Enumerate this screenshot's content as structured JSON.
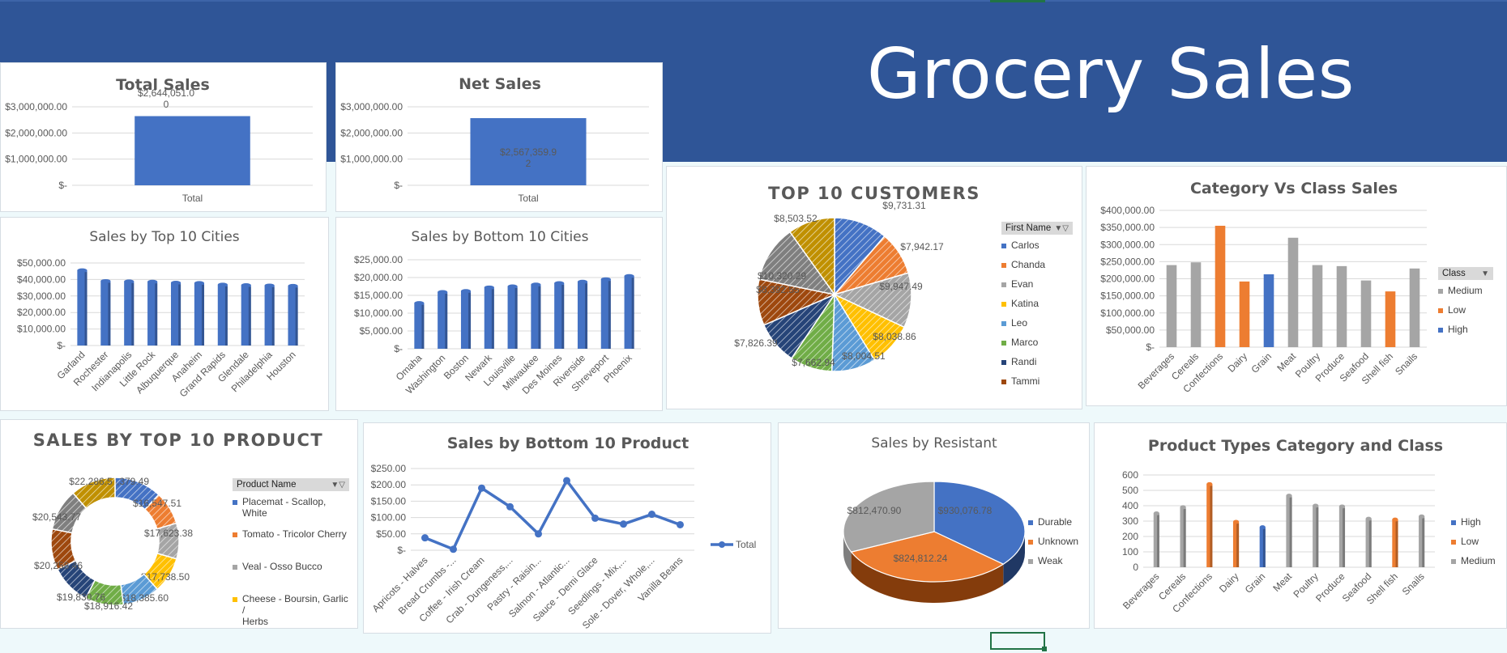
{
  "page": {
    "title": "Grocery Sales"
  },
  "colors": {
    "banner": "#2f5597",
    "bar": "#4472c4",
    "orange": "#ed7d31",
    "gray": "#a5a5a5",
    "yellow": "#ffc000",
    "lightblue": "#5b9bd5",
    "green": "#70ad47",
    "navy": "#264478",
    "brown": "#9e480e"
  },
  "chart_data": [
    {
      "id": "total_sales",
      "type": "bar",
      "title": "Total Sales",
      "categories": [
        "Total"
      ],
      "values": [
        2644051.0
      ],
      "data_labels": [
        "$2,644,051.0",
        "0"
      ],
      "ylim": [
        0,
        3000000
      ],
      "yticks": [
        "$-",
        "$1,000,000.00",
        "$2,000,000.00",
        "$3,000,000.00"
      ]
    },
    {
      "id": "net_sales",
      "type": "bar",
      "title": "Net Sales",
      "categories": [
        "Total"
      ],
      "values": [
        2567359.92
      ],
      "data_labels": [
        "$2,567,359.9",
        "2"
      ],
      "ylim": [
        0,
        3000000
      ],
      "yticks": [
        "$-",
        "$1,000,000.00",
        "$2,000,000.00",
        "$3,000,000.00"
      ]
    },
    {
      "id": "top_cities",
      "type": "bar",
      "title": "Sales by Top 10 Cities",
      "categories": [
        "Garland",
        "Rochester",
        "Indianapolis",
        "Little Rock",
        "Albuquerque",
        "Anaheim",
        "Grand Rapids",
        "Glendale",
        "Philadelphia",
        "Houston"
      ],
      "values": [
        45500,
        39000,
        38800,
        38600,
        38000,
        37800,
        36800,
        36500,
        36300,
        36100
      ],
      "ylim": [
        0,
        50000
      ],
      "yticks": [
        "$-",
        "$10,000.00",
        "$20,000.00",
        "$30,000.00",
        "$40,000.00",
        "$50,000.00"
      ]
    },
    {
      "id": "bottom_cities",
      "type": "bar",
      "title": "Sales by Bottom 10 Cities",
      "categories": [
        "Omaha",
        "Washington",
        "Boston",
        "Newark",
        "Louisville",
        "Milwaukee",
        "Des Moines",
        "Riverside",
        "Shreveport",
        "Phoenix"
      ],
      "values": [
        12800,
        15900,
        16200,
        17200,
        17500,
        18000,
        18400,
        18800,
        19500,
        20400
      ],
      "ylim": [
        0,
        25000
      ],
      "yticks": [
        "$-",
        "$5,000.00",
        "$10,000.00",
        "$15,000.00",
        "$20,000.00",
        "$25,000.00"
      ]
    },
    {
      "id": "top_customers",
      "type": "pie",
      "title": "TOP 10 CUSTOMERS",
      "legend_title": "First Name",
      "legend": [
        "Carlos",
        "Chanda",
        "Evan",
        "Katina",
        "Leo",
        "Marco",
        "Randi",
        "Tammi"
      ],
      "labels": [
        "$9,731.31",
        "$7,942.17",
        "$9,947.49",
        "$8,038.86",
        "$8,004.51",
        "$7,662.94",
        "$7,826.39",
        "$8,392.55",
        "$10,320.29",
        "$8,503.52"
      ],
      "values": [
        9731.31,
        7942.17,
        9947.49,
        8038.86,
        8004.51,
        7662.94,
        7826.39,
        8392.55,
        10320.29,
        8503.52
      ]
    },
    {
      "id": "category_class",
      "type": "bar",
      "title": "Category Vs Class Sales",
      "categories": [
        "Beverages",
        "Cereals",
        "Confections",
        "Dairy",
        "Grain",
        "Meat",
        "Poultry",
        "Produce",
        "Seafood",
        "Shell fish",
        "Snails"
      ],
      "values": [
        240000,
        248000,
        355000,
        192000,
        213000,
        320000,
        240000,
        237000,
        195000,
        163000,
        230000
      ],
      "classes": [
        "Medium",
        "Medium",
        "Low",
        "Low",
        "High",
        "Medium",
        "Medium",
        "Medium",
        "Medium",
        "Low",
        "Medium"
      ],
      "legend_title": "Class",
      "legend": [
        "Medium",
        "Low",
        "High"
      ],
      "ylim": [
        0,
        400000
      ],
      "yticks": [
        "$-",
        "$50,000.00",
        "$100,000.00",
        "$150,000.00",
        "$200,000.00",
        "$250,000.00",
        "$300,000.00",
        "$350,000.00",
        "$400,000.00"
      ]
    },
    {
      "id": "top_products",
      "type": "pie",
      "title": "SALES BY TOP 10 PRODUCT",
      "legend_title": "Product Name",
      "legend": [
        {
          "l1": "Placemat - Scallop,",
          "l2": "White"
        },
        {
          "l1": "Tomato - Tricolor Cherry",
          "l2": ""
        },
        {
          "l1": "Veal - Osso Bucco",
          "l2": ""
        },
        {
          "l1": "Cheese - Boursin, Garlic /",
          "l2": "Herbs"
        }
      ],
      "labels": [
        "$23,379.49",
        "$16,547.51",
        "$17,623.38",
        "$17,738.50",
        "$18,385.60",
        "$18,916.42",
        "$19,830.76",
        "$20,258.46",
        "$20,543.77",
        "$22,286.5"
      ],
      "values": [
        23379.49,
        16547.51,
        17623.38,
        17738.5,
        18385.6,
        18916.42,
        19830.76,
        20258.46,
        20543.77,
        22286.5
      ]
    },
    {
      "id": "bottom_products",
      "type": "line",
      "title": "Sales by Bottom 10 Product",
      "categories": [
        "Apricots - Halves",
        "Bread Crumbs -...",
        "Coffee - Irish Cream",
        "Crab - Dungeness,...",
        "Pastry - Raisin...",
        "Salmon - Atlantic...",
        "Sauce - Demi Glace",
        "Seedlings - Mix,...",
        "Sole - Dover, Whole,...",
        "Vanilla Beans"
      ],
      "values": [
        38,
        3,
        190,
        133,
        50,
        213,
        98,
        80,
        110,
        78
      ],
      "legend": [
        "Total"
      ],
      "ylim": [
        0,
        250
      ],
      "yticks": [
        "$-",
        "$50.00",
        "$100.00",
        "$150.00",
        "$200.00",
        "$250.00"
      ]
    },
    {
      "id": "resistant",
      "type": "pie",
      "title": "Sales by Resistant",
      "legend": [
        "Durable",
        "Unknown",
        "Weak"
      ],
      "labels": [
        "$930,076.78",
        "$824,812.24",
        "$812,470.90"
      ],
      "values": [
        930076.78,
        824812.24,
        812470.9
      ]
    },
    {
      "id": "product_types",
      "type": "bar",
      "title": "Product Types Category and Class",
      "categories": [
        "Beverages",
        "Cereals",
        "Confections",
        "Dairy",
        "Grain",
        "Meat",
        "Poultry",
        "Produce",
        "Seafood",
        "Shell fish",
        "Snails"
      ],
      "values": [
        350,
        390,
        540,
        295,
        260,
        465,
        400,
        395,
        315,
        310,
        330
      ],
      "classes": [
        "Medium",
        "Medium",
        "Low",
        "Low",
        "High",
        "Medium",
        "Medium",
        "Medium",
        "Medium",
        "Low",
        "Medium"
      ],
      "legend": [
        "High",
        "Low",
        "Medium"
      ],
      "ylim": [
        0,
        600
      ],
      "yticks": [
        "0",
        "100",
        "200",
        "300",
        "400",
        "500",
        "600"
      ]
    }
  ]
}
